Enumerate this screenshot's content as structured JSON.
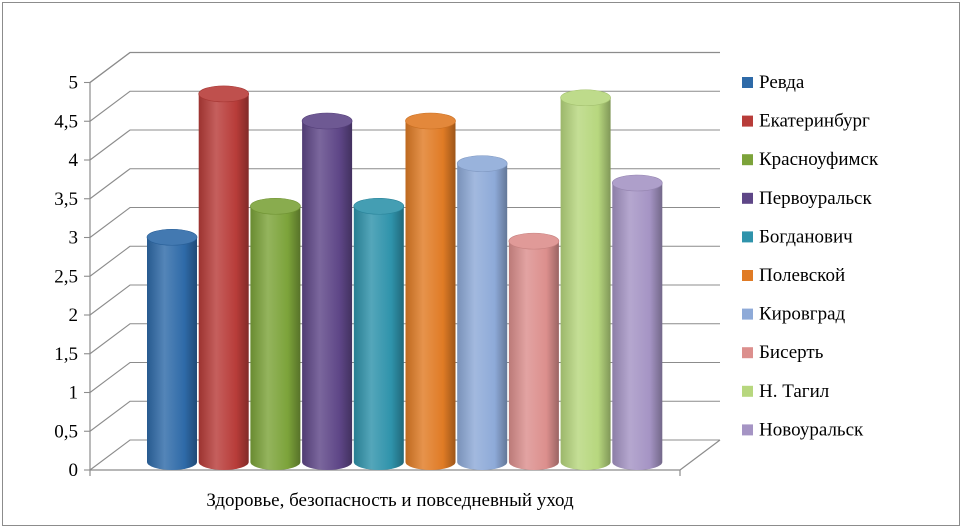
{
  "chart_data": {
    "type": "bar",
    "style": "3d-cylinder",
    "categories": [
      "Здоровье, безопасность и повседневный уход"
    ],
    "ylim": [
      0,
      5
    ],
    "yticks": [
      "0",
      "0,5",
      "1",
      "1,5",
      "2",
      "2,5",
      "3",
      "3,5",
      "4",
      "4,5",
      "5"
    ],
    "grid": true,
    "legend_position": "right",
    "series": [
      {
        "name": "Ревда",
        "values": [
          2.9
        ],
        "color": "#2e6aa8"
      },
      {
        "name": "Екатеринбург",
        "values": [
          4.75
        ],
        "color": "#b83c39"
      },
      {
        "name": "Красноуфимск",
        "values": [
          3.3
        ],
        "color": "#7ca33a"
      },
      {
        "name": "Первоуральск",
        "values": [
          4.4
        ],
        "color": "#5e4687"
      },
      {
        "name": "Богданович",
        "values": [
          3.3
        ],
        "color": "#2f93ab"
      },
      {
        "name": "Полевской",
        "values": [
          4.4
        ],
        "color": "#e07b25"
      },
      {
        "name": "Кировград",
        "values": [
          3.85
        ],
        "color": "#8eaad8"
      },
      {
        "name": "Бисерть",
        "values": [
          2.85
        ],
        "color": "#dc8f8d"
      },
      {
        "name": "Н. Тагил",
        "values": [
          4.7
        ],
        "color": "#b7d77e"
      },
      {
        "name": "Новоуральск",
        "values": [
          3.6
        ],
        "color": "#a594c4"
      }
    ]
  }
}
